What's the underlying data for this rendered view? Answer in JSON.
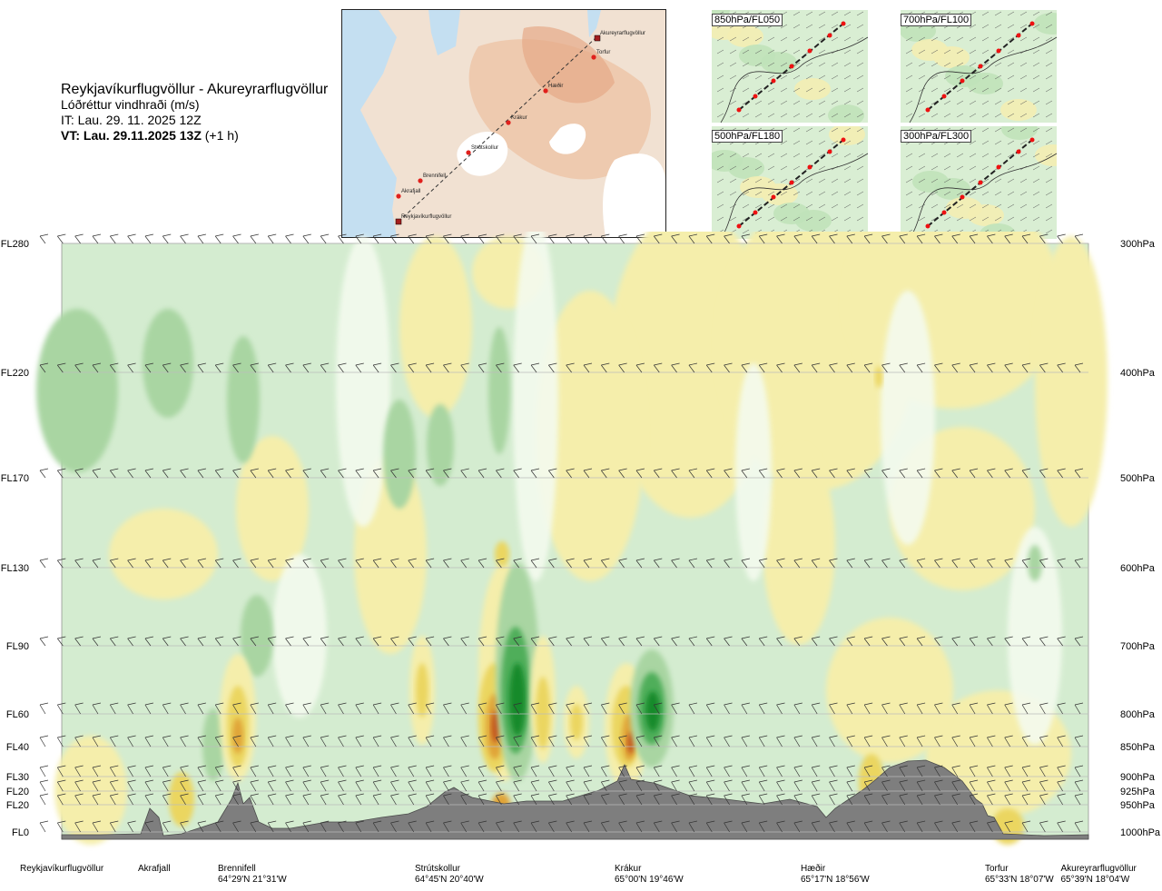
{
  "title": {
    "route": "Reykjavíkurflugvöllur - Akureyrarflugvöllur",
    "parameter": "Lóðréttur vindhraði (m/s)",
    "it": "IT: Lau. 29. 11. 2025 12Z",
    "vt": "VT: Lau. 29.11.2025 13Z",
    "vt_offset": "(+1 h)"
  },
  "map_places": [
    "Akureyrarflugvöllur",
    "Torfur",
    "Hæðir",
    "Krákur",
    "Strútskollur",
    "Brennifell",
    "Akrafjall",
    "Reykjavíkurflugvöllur"
  ],
  "thumbnails": [
    {
      "label": "850hPa/FL050"
    },
    {
      "label": "700hPa/FL100"
    },
    {
      "label": "500hPa/FL180"
    },
    {
      "label": "300hPa/FL300"
    }
  ],
  "chart_data": {
    "type": "heatmap",
    "title": "Lóðréttur vindhraði (m/s)",
    "levels": [
      {
        "fl": "FL280",
        "hpa": "300hPa"
      },
      {
        "fl": "FL220",
        "hpa": "400hPa"
      },
      {
        "fl": "FL170",
        "hpa": "500hPa"
      },
      {
        "fl": "FL130",
        "hpa": "600hPa"
      },
      {
        "fl": "FL90",
        "hpa": "700hPa"
      },
      {
        "fl": "FL60",
        "hpa": "800hPa"
      },
      {
        "fl": "FL40",
        "hpa": "850hPa"
      },
      {
        "fl": "FL30",
        "hpa": "900hPa"
      },
      {
        "fl": "FL20",
        "hpa": "925hPa"
      },
      {
        "fl": "FL20",
        "hpa": "950hPa"
      },
      {
        "fl": "FL0",
        "hpa": "1000hPa"
      }
    ],
    "locations": [
      {
        "name": "Reykjavíkurflugvöllur",
        "coord": ""
      },
      {
        "name": "Akrafjall",
        "coord": ""
      },
      {
        "name": "Brennifell",
        "coord": "64°29'N 21°31'W"
      },
      {
        "name": "Strútskollur",
        "coord": "64°45'N 20°40'W"
      },
      {
        "name": "Krákur",
        "coord": "65°00'N 19°46'W"
      },
      {
        "name": "Hæðir",
        "coord": "65°17'N 18°56'W"
      },
      {
        "name": "Torfur",
        "coord": "65°33'N 18°07'W"
      },
      {
        "name": "Akureyrarflugvöllur",
        "coord": "65°39'N 18°04'W"
      }
    ],
    "colors": {
      "strong_up": "#128a2a",
      "up": "#4fae5a",
      "weak_up2": "#a9d5a2",
      "weak_up": "#d4ecd0",
      "near_zero": "#f4fbef",
      "weak_down": "#f5eeab",
      "down": "#ebd661",
      "strong_down": "#e0a437",
      "very_strong_down": "#c2541c",
      "terrain": "#7e7e7e"
    }
  }
}
